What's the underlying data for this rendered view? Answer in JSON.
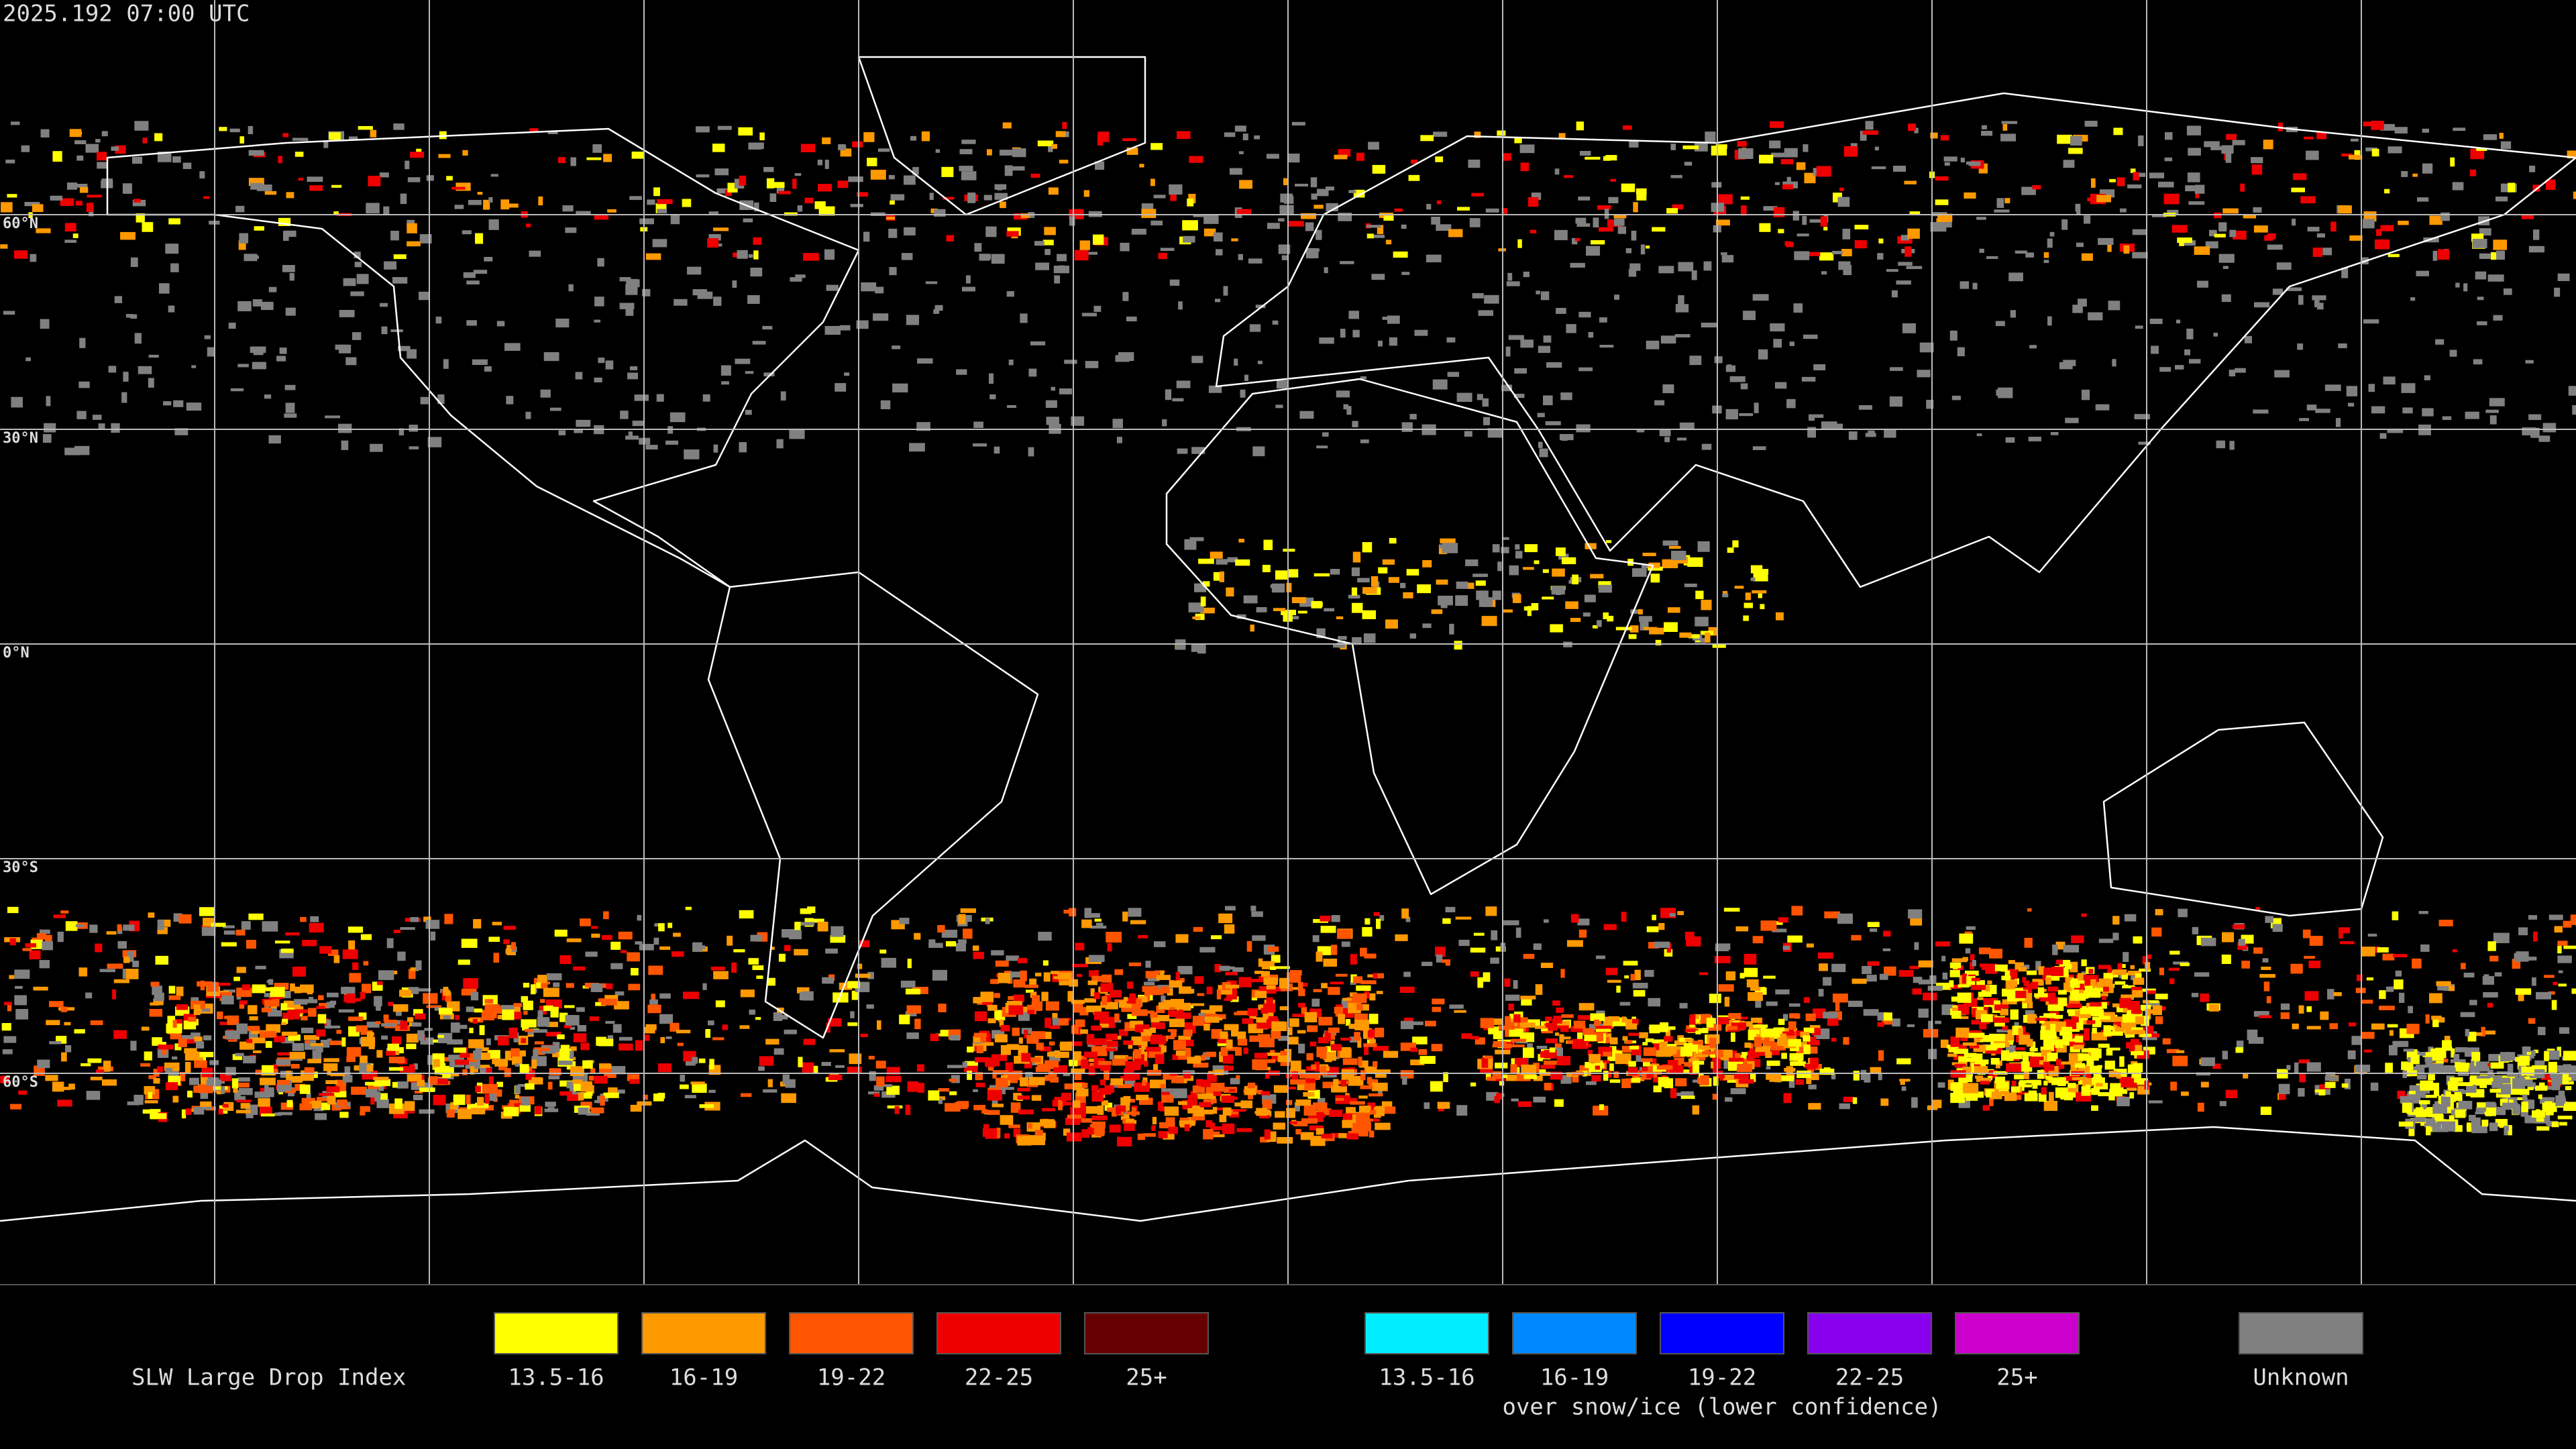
{
  "timestamp": "2025.192 07:00 UTC",
  "map": {
    "lat_labels": [
      "60°N",
      "30°N",
      "0°N",
      "30°S",
      "60°S"
    ]
  },
  "legend": {
    "title": "SLW Large Drop Index",
    "groups": [
      {
        "items": [
          {
            "label": "13.5-16",
            "color": "#ffff00"
          },
          {
            "label": "16-19",
            "color": "#ff9900"
          },
          {
            "label": "19-22",
            "color": "#ff5500"
          },
          {
            "label": "22-25",
            "color": "#ee0000"
          },
          {
            "label": "25+",
            "color": "#660000"
          }
        ]
      },
      {
        "items": [
          {
            "label": "13.5-16",
            "color": "#00eeff"
          },
          {
            "label": "16-19",
            "color": "#0088ff"
          },
          {
            "label": "19-22",
            "color": "#0000ff"
          },
          {
            "label": "22-25",
            "color": "#8800ee"
          },
          {
            "label": "25+",
            "color": "#cc00cc"
          }
        ],
        "caption": "over snow/ice (lower confidence)"
      },
      {
        "items": [
          {
            "label": "Unknown",
            "color": "#808080"
          }
        ]
      }
    ]
  }
}
